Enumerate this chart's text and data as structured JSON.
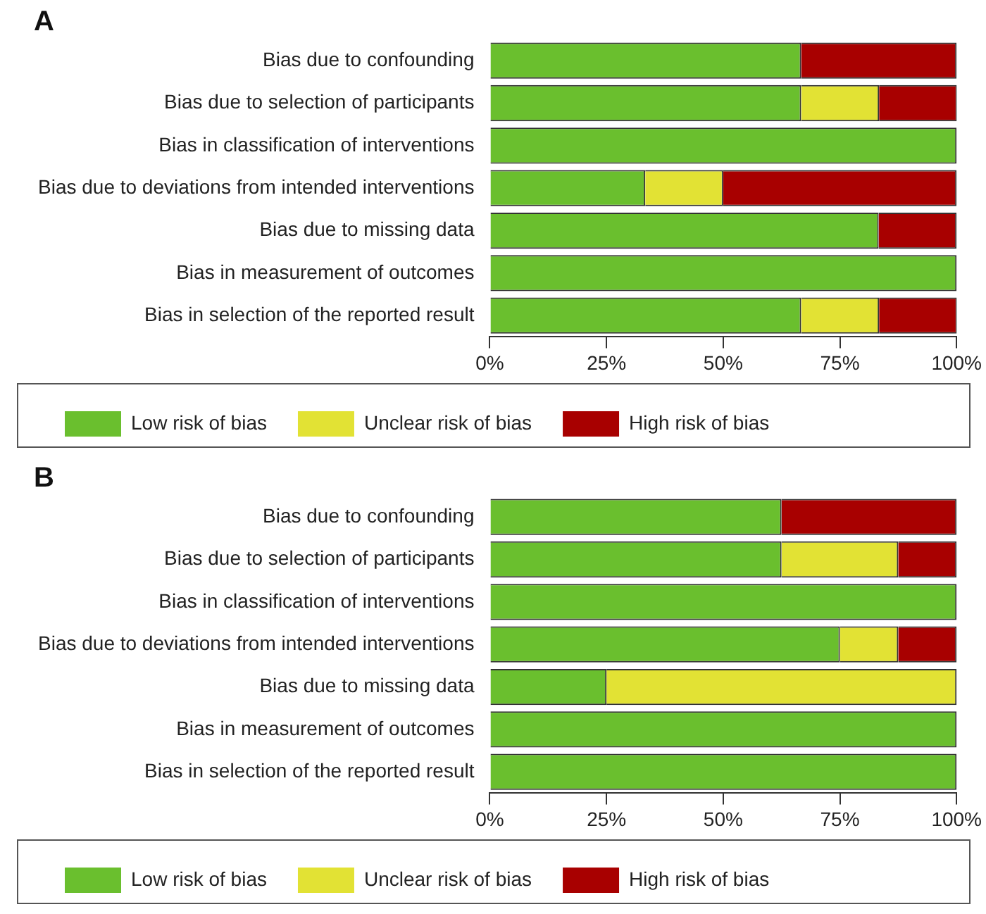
{
  "chart_data": [
    {
      "type": "bar",
      "title": "A",
      "orientation": "horizontal",
      "stacked": true,
      "legend": "bottom",
      "grid": false,
      "categories": [
        "Bias due to confounding",
        "Bias due to selection of participants",
        "Bias in classification of interventions",
        "Bias due to deviations from intended interventions",
        "Bias due to missing data",
        "Bias in measurement of outcomes",
        "Bias in selection of the reported result"
      ],
      "series": [
        {
          "name": "Low risk of bias",
          "color": "#6abf2e",
          "values": [
            66.7,
            66.7,
            100,
            33.3,
            83.3,
            100,
            66.7
          ]
        },
        {
          "name": "Unclear risk of bias",
          "color": "#e2e234",
          "values": [
            0,
            16.7,
            0,
            16.7,
            0,
            0,
            16.7
          ]
        },
        {
          "name": "High risk of bias",
          "color": "#a80000",
          "values": [
            33.3,
            16.7,
            0,
            50,
            16.7,
            0,
            16.7
          ]
        }
      ],
      "xlim": [
        0,
        100
      ],
      "xticks": [
        {
          "value": 0,
          "label": "0%"
        },
        {
          "value": 25,
          "label": "25%"
        },
        {
          "value": 50,
          "label": "50%"
        },
        {
          "value": 75,
          "label": "75%"
        },
        {
          "value": 100,
          "label": "100%"
        }
      ]
    },
    {
      "type": "bar",
      "title": "B",
      "orientation": "horizontal",
      "stacked": true,
      "legend": "bottom",
      "grid": false,
      "categories": [
        "Bias due to confounding",
        "Bias due to selection of participants",
        "Bias in classification of interventions",
        "Bias due to deviations from intended interventions",
        "Bias due to missing data",
        "Bias in measurement of outcomes",
        "Bias in selection of the reported result"
      ],
      "series": [
        {
          "name": "Low risk of bias",
          "color": "#6abf2e",
          "values": [
            62.5,
            62.5,
            100,
            75,
            25,
            100,
            100
          ]
        },
        {
          "name": "Unclear risk of bias",
          "color": "#e2e234",
          "values": [
            0,
            25,
            0,
            12.5,
            75,
            0,
            0
          ]
        },
        {
          "name": "High risk of bias",
          "color": "#a80000",
          "values": [
            37.5,
            12.5,
            0,
            12.5,
            0,
            0,
            0
          ]
        }
      ],
      "xlim": [
        0,
        100
      ],
      "xticks": [
        {
          "value": 0,
          "label": "0%"
        },
        {
          "value": 25,
          "label": "25%"
        },
        {
          "value": 50,
          "label": "50%"
        },
        {
          "value": 75,
          "label": "75%"
        },
        {
          "value": 100,
          "label": "100%"
        }
      ]
    }
  ]
}
